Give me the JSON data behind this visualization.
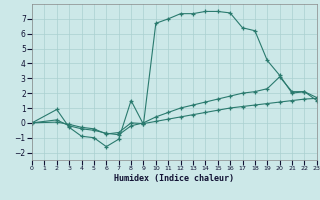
{
  "xlabel": "Humidex (Indice chaleur)",
  "bg_color": "#cce8e8",
  "grid_color": "#aad0d0",
  "line_color": "#2a7a6e",
  "xlim": [
    0,
    23
  ],
  "ylim": [
    -2.5,
    8.0
  ],
  "yticks": [
    -2,
    -1,
    0,
    1,
    2,
    3,
    4,
    5,
    6,
    7
  ],
  "xticks": [
    0,
    1,
    2,
    3,
    4,
    5,
    6,
    7,
    8,
    9,
    10,
    11,
    12,
    13,
    14,
    15,
    16,
    17,
    18,
    19,
    20,
    21,
    22,
    23
  ],
  "series1_x": [
    0,
    2,
    3,
    4,
    5,
    6,
    7,
    8,
    9,
    10,
    11,
    12,
    13,
    14,
    15,
    16,
    17,
    18,
    19,
    20,
    21,
    22,
    23
  ],
  "series1_y": [
    0,
    0.9,
    -0.3,
    -0.9,
    -1.0,
    -1.6,
    -1.1,
    1.5,
    -0.1,
    6.7,
    7.0,
    7.35,
    7.35,
    7.5,
    7.5,
    7.4,
    6.4,
    6.2,
    4.2,
    3.2,
    2.0,
    2.1,
    1.5
  ],
  "series2_x": [
    0,
    2,
    3,
    4,
    5,
    6,
    7,
    8,
    9,
    10,
    11,
    12,
    13,
    14,
    15,
    16,
    17,
    18,
    19,
    20,
    21,
    22,
    23
  ],
  "series2_y": [
    0,
    0.2,
    -0.2,
    -0.4,
    -0.5,
    -0.7,
    -0.8,
    -0.2,
    0.0,
    0.4,
    0.7,
    1.0,
    1.2,
    1.4,
    1.6,
    1.8,
    2.0,
    2.1,
    2.3,
    3.1,
    2.1,
    2.1,
    1.7
  ],
  "series3_x": [
    0,
    2,
    3,
    4,
    5,
    6,
    7,
    8,
    9,
    10,
    11,
    12,
    13,
    14,
    15,
    16,
    17,
    18,
    19,
    20,
    21,
    22,
    23
  ],
  "series3_y": [
    0,
    0.05,
    -0.1,
    -0.3,
    -0.4,
    -0.75,
    -0.65,
    0.0,
    -0.05,
    0.1,
    0.25,
    0.4,
    0.55,
    0.7,
    0.85,
    1.0,
    1.1,
    1.2,
    1.3,
    1.4,
    1.5,
    1.6,
    1.65
  ]
}
